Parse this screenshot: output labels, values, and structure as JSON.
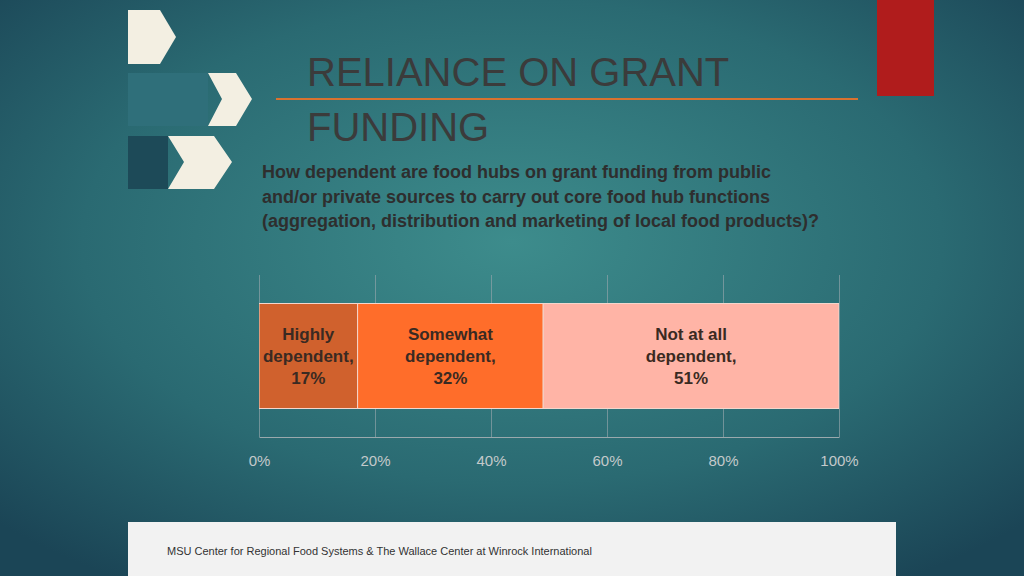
{
  "chart_data": {
    "type": "bar",
    "title": "RELIANCE ON GRANT FUNDING",
    "subtitle": "How dependent are food hubs on grant funding from public and/or private sources to carry out core food hub functions (aggregation, distribution and marketing of local food products)?",
    "annotations": [
      "MSU Center for Regional Food Systems & The Wallace Center at Winrock International"
    ],
    "orientation": "horizontal",
    "stacked": true,
    "data_labels": true,
    "grid": true,
    "tick_labels": "x",
    "categories": [
      null
    ],
    "series": [
      {
        "name": "Highly dependent,",
        "color": "#d0612d",
        "values": [
          17
        ],
        "value_labels": [
          "17%"
        ]
      },
      {
        "name": "Somewhat dependent,",
        "color": "#ff6d2a",
        "values": [
          32
        ],
        "value_labels": [
          "32%"
        ]
      },
      {
        "name": "Not at all dependent,",
        "color": "#ffb4a6",
        "values": [
          51
        ],
        "value_labels": [
          "51%"
        ]
      }
    ],
    "xlim": [
      0,
      100
    ],
    "xticks": [
      {
        "value": 0,
        "label": "0%"
      },
      {
        "value": 20,
        "label": "20%"
      },
      {
        "value": 40,
        "label": "40%"
      },
      {
        "value": 60,
        "label": "60%"
      },
      {
        "value": 80,
        "label": "80%"
      },
      {
        "value": 100,
        "label": "100%"
      }
    ]
  }
}
